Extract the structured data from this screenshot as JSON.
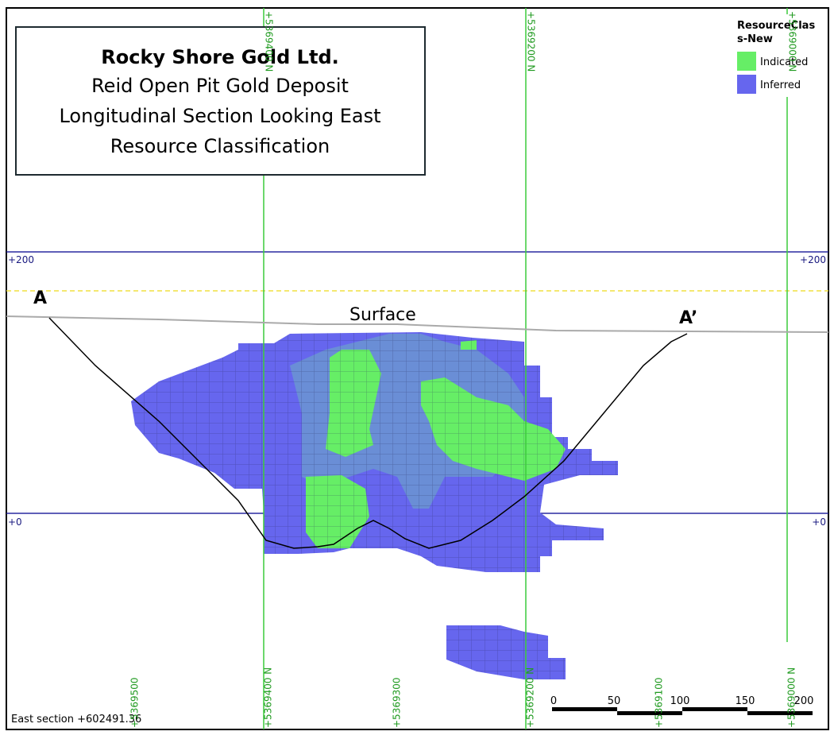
{
  "title_box": {
    "company": "Rocky Shore Gold Ltd.",
    "lines": [
      "Reid Open Pit Gold Deposit",
      "Longitudinal Section Looking East",
      "Resource Classification"
    ]
  },
  "legend": {
    "title": [
      "ResourceClas",
      "s-New"
    ],
    "items": [
      "Indicated",
      "Inferred"
    ]
  },
  "elevation_labels": {
    "left": [
      "+200",
      "+0"
    ],
    "right": [
      "+200",
      "+0"
    ]
  },
  "northing_top": [
    "+5369400 N",
    "+5369200 N",
    "+5369000 N"
  ],
  "northing_bottom": [
    "+5369500",
    "+5369400 N",
    "+5369300",
    "+5369200 N",
    "+5369100",
    "+5369000 N"
  ],
  "section_labels": {
    "start": "A",
    "end": "A’",
    "surface": "Surface"
  },
  "section_note": "East section +602491.36",
  "scale_bar": {
    "labels": [
      0,
      50,
      100,
      150,
      200
    ]
  }
}
